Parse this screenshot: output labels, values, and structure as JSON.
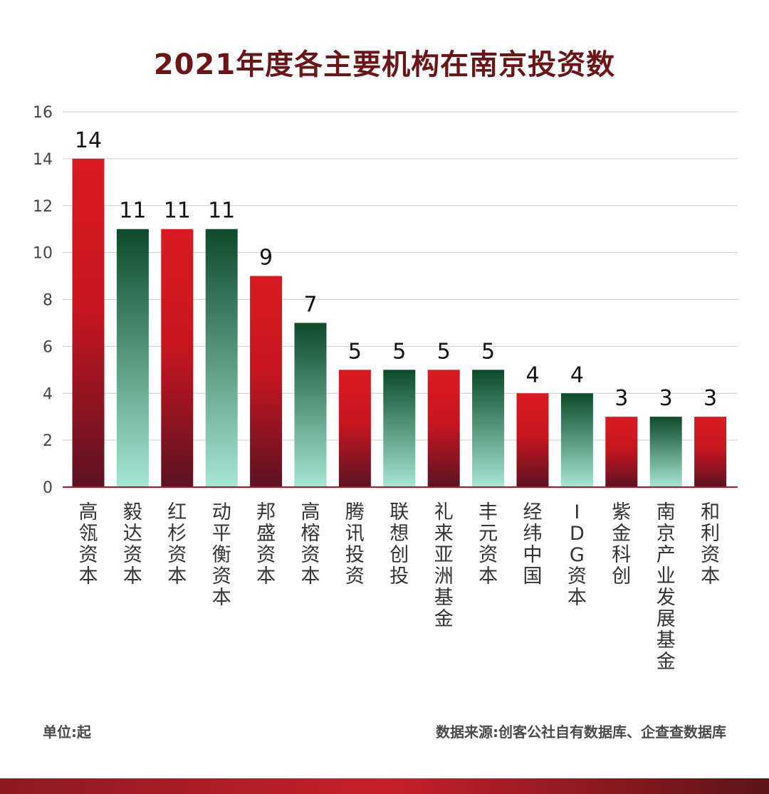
{
  "colors": {
    "title": "#6b1518",
    "red_top": "#d91a22",
    "red_bottom": "#5c1222",
    "green_top": "#0d4a2a",
    "green_bottom": "#a6e6d4",
    "grid": "#cccccc",
    "axis": "#c0101a"
  },
  "footer": {
    "unit": "单位:起",
    "source": "数据来源:创客公社自有数据库、企查查数据库"
  },
  "chart_data": {
    "type": "bar",
    "title": "2021年度各主要机构在南京投资数",
    "xlabel": "",
    "ylabel": "",
    "ylim": [
      0,
      16
    ],
    "yticks": [
      0,
      2,
      4,
      6,
      8,
      10,
      12,
      14,
      16
    ],
    "grid": true,
    "categories": [
      "高瓴资本",
      "毅达资本",
      "红杉资本",
      "动平衡资本",
      "邦盛资本",
      "高榕资本",
      "腾讯投资",
      "联想创投",
      "礼来亚洲基金",
      "丰元资本",
      "经纬中国",
      "IDG资本",
      "紫金科创",
      "南京产业发展基金",
      "和利资本"
    ],
    "values": [
      14,
      11,
      11,
      11,
      9,
      7,
      5,
      5,
      5,
      5,
      4,
      4,
      3,
      3,
      3
    ],
    "bar_styles": [
      "red",
      "green",
      "red",
      "green",
      "red",
      "green",
      "red",
      "green",
      "red",
      "green",
      "red",
      "green",
      "red",
      "green",
      "red"
    ]
  }
}
